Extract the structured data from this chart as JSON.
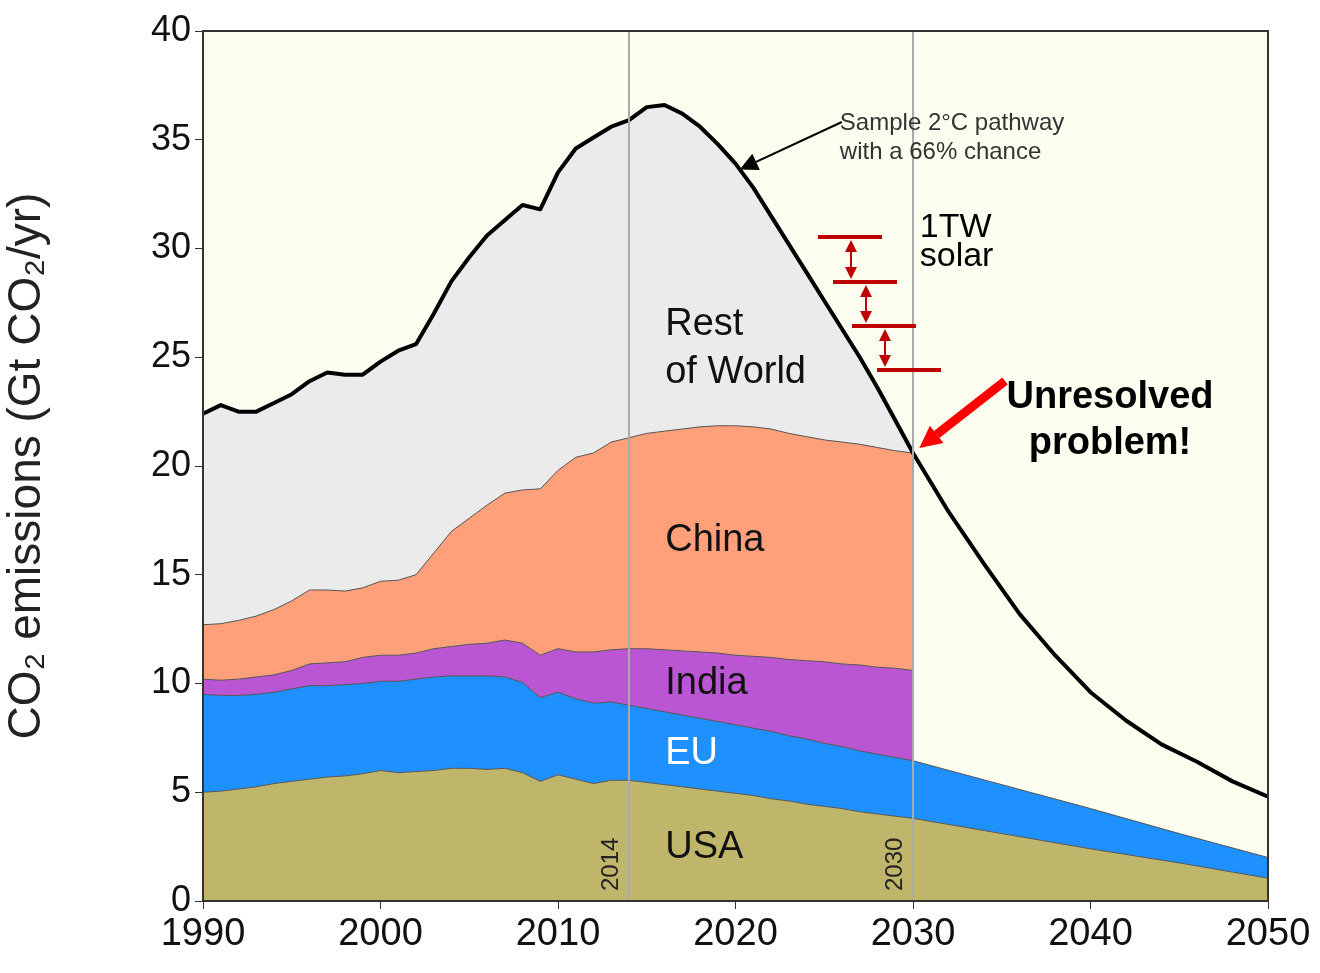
{
  "chart_data": {
    "type": "area",
    "stacked": true,
    "ylabel": "CO₂ emissions (Gt CO₂/yr)",
    "xlim": [
      1990,
      2050
    ],
    "xticks": [
      1990,
      2000,
      2010,
      2020,
      2030,
      2040,
      2050
    ],
    "ylim": [
      0,
      40
    ],
    "yticks": [
      0,
      5,
      10,
      15,
      20,
      25,
      30,
      35,
      40
    ],
    "x": [
      1990,
      1991,
      1992,
      1993,
      1994,
      1995,
      1996,
      1997,
      1998,
      1999,
      2000,
      2001,
      2002,
      2003,
      2004,
      2005,
      2006,
      2007,
      2008,
      2009,
      2010,
      2011,
      2012,
      2013,
      2014,
      2015,
      2016,
      2017,
      2018,
      2019,
      2020,
      2021,
      2022,
      2023,
      2024,
      2025,
      2026,
      2027,
      2028,
      2029,
      2030,
      2035,
      2040,
      2045,
      2050
    ],
    "series": [
      {
        "name": "USA",
        "color": "#bfb66b",
        "values": [
          5.0,
          5.05,
          5.15,
          5.25,
          5.4,
          5.5,
          5.6,
          5.7,
          5.75,
          5.85,
          6.0,
          5.9,
          5.95,
          6.0,
          6.1,
          6.1,
          6.05,
          6.1,
          5.9,
          5.5,
          5.8,
          5.6,
          5.4,
          5.55,
          5.55,
          5.45,
          5.35,
          5.25,
          5.15,
          5.05,
          4.95,
          4.85,
          4.7,
          4.6,
          4.45,
          4.35,
          4.25,
          4.1,
          4.0,
          3.9,
          3.8,
          3.1,
          2.4,
          1.75,
          1.05
        ]
      },
      {
        "name": "EU",
        "color": "#1e90ff",
        "values": [
          4.5,
          4.4,
          4.3,
          4.25,
          4.2,
          4.25,
          4.3,
          4.2,
          4.2,
          4.15,
          4.1,
          4.2,
          4.25,
          4.3,
          4.25,
          4.25,
          4.3,
          4.2,
          4.15,
          3.85,
          3.8,
          3.7,
          3.7,
          3.6,
          3.45,
          3.4,
          3.35,
          3.3,
          3.25,
          3.2,
          3.15,
          3.1,
          3.1,
          3.0,
          3.0,
          2.9,
          2.85,
          2.8,
          2.75,
          2.7,
          2.65,
          2.25,
          1.85,
          1.35,
          0.95
        ]
      },
      {
        "name": "India",
        "color": "#ba55d3",
        "values": [
          0.7,
          0.7,
          0.75,
          0.8,
          0.8,
          0.85,
          1.0,
          1.05,
          1.05,
          1.2,
          1.2,
          1.2,
          1.2,
          1.3,
          1.35,
          1.45,
          1.5,
          1.7,
          1.8,
          1.95,
          2.0,
          2.15,
          2.35,
          2.4,
          2.6,
          2.75,
          2.85,
          2.95,
          3.05,
          3.15,
          3.2,
          3.3,
          3.4,
          3.5,
          3.6,
          3.75,
          3.8,
          3.95,
          4.0,
          4.1,
          4.15,
          null,
          null,
          null,
          null
        ]
      },
      {
        "name": "China",
        "color": "#ffa07a",
        "values": [
          2.5,
          2.6,
          2.7,
          2.8,
          3.0,
          3.2,
          3.4,
          3.35,
          3.25,
          3.2,
          3.4,
          3.45,
          3.6,
          4.4,
          5.3,
          5.8,
          6.35,
          6.75,
          7.05,
          7.65,
          8.2,
          8.95,
          9.15,
          9.55,
          9.7,
          9.9,
          10.05,
          10.2,
          10.35,
          10.45,
          10.55,
          10.55,
          10.5,
          10.4,
          10.3,
          10.2,
          10.2,
          10.15,
          10.1,
          10.0,
          10.0,
          null,
          null,
          null,
          null
        ]
      },
      {
        "name": "Rest of World",
        "color": "#ebebeb",
        "values": [
          9.7,
          10.05,
          9.6,
          9.4,
          9.5,
          9.5,
          9.6,
          10.0,
          9.95,
          9.8,
          10.1,
          10.55,
          10.6,
          11.0,
          11.5,
          12.0,
          12.4,
          12.55,
          13.1,
          12.85,
          13.7,
          14.2,
          14.5,
          14.5,
          14.6,
          15.0,
          15.0,
          14.5,
          13.8,
          12.95,
          12.05,
          11.0,
          9.8,
          8.7,
          7.55,
          6.4,
          5.2,
          4.0,
          2.75,
          1.4,
          0,
          null,
          null,
          null,
          null
        ]
      },
      {
        "type": "line",
        "color": "#000000",
        "x": [
          1990,
          1991,
          1992,
          1993,
          1994,
          1995,
          1996,
          1997,
          1998,
          1999,
          2000,
          2001,
          2002,
          2003,
          2004,
          2005,
          2006,
          2007,
          2008,
          2009,
          2010,
          2011,
          2012,
          2013,
          2014,
          2015,
          2016,
          2017,
          2018,
          2019,
          2020,
          2021,
          2022,
          2023,
          2024,
          2025,
          2026,
          2027,
          2028,
          2029,
          2030,
          2032,
          2034,
          2036,
          2038,
          2040,
          2042,
          2044,
          2046,
          2048,
          2050
        ],
        "values": [
          22.4,
          22.8,
          22.5,
          22.5,
          22.9,
          23.3,
          23.9,
          24.3,
          24.2,
          24.2,
          24.8,
          25.3,
          25.6,
          27.0,
          28.5,
          29.6,
          30.6,
          31.3,
          32.0,
          31.8,
          33.5,
          34.6,
          35.1,
          35.6,
          35.9,
          36.5,
          36.6,
          36.2,
          35.6,
          34.8,
          33.9,
          32.8,
          31.5,
          30.2,
          28.9,
          27.6,
          26.3,
          25.0,
          23.6,
          22.1,
          20.6,
          17.9,
          15.5,
          13.2,
          11.3,
          9.6,
          8.3,
          7.2,
          6.4,
          5.5,
          4.8
        ]
      }
    ],
    "ref_lines": [
      {
        "axis": "x",
        "value": 2014,
        "label": "2014",
        "color": "#aaaaaa"
      },
      {
        "axis": "x",
        "value": 2030,
        "label": "2030",
        "color": "#aaaaaa"
      }
    ],
    "annotations": [
      "Sample 2°C pathway with a 66% chance",
      "1TW solar",
      {
        "text": "Unresolved problem!",
        "x": 2030,
        "y": 20.6
      }
    ]
  }
}
